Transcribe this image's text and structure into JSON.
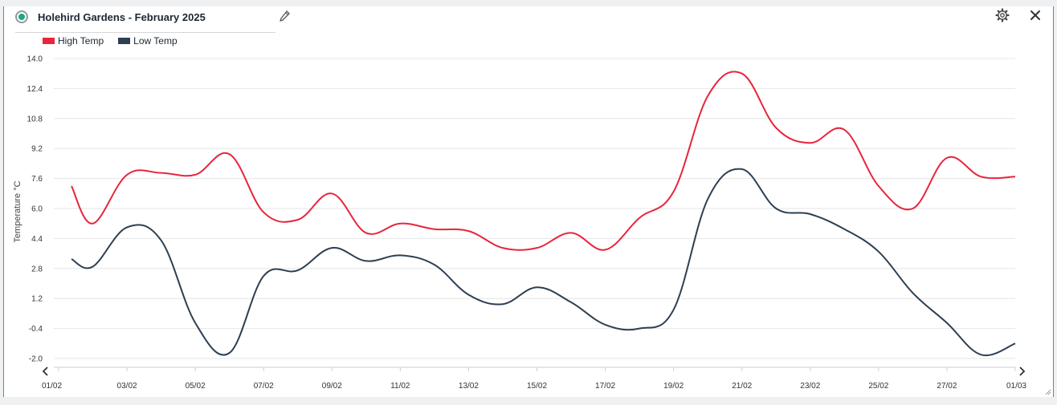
{
  "header": {
    "title": "Holehird Gardens - February 2025"
  },
  "icons": {
    "status": "status-indicator-icon",
    "edit": "pencil-icon",
    "settings": "gear-icon",
    "close": "close-icon",
    "prev": "chevron-left-icon",
    "next": "chevron-right-icon"
  },
  "colors": {
    "accent": "#2aa39a",
    "high": "#e8253c",
    "low": "#2e3f52",
    "status_on": "#1aa886"
  },
  "chart_data": {
    "type": "line",
    "title": "",
    "ylabel": "Temperature °C",
    "xlabel": "",
    "ylim": [
      -2.0,
      14.0
    ],
    "yticks": [
      "14.0",
      "12.4",
      "10.8",
      "9.2",
      "7.6",
      "6.0",
      "4.4",
      "2.8",
      "1.2",
      "-0.4",
      "-2.0"
    ],
    "xticks": [
      "01/02",
      "03/02",
      "05/02",
      "07/02",
      "09/02",
      "11/02",
      "13/02",
      "15/02",
      "17/02",
      "19/02",
      "21/02",
      "23/02",
      "25/02",
      "27/02",
      "01/03"
    ],
    "x": [
      "01/02",
      "02/02",
      "03/02",
      "04/02",
      "05/02",
      "06/02",
      "07/02",
      "08/02",
      "09/02",
      "10/02",
      "11/02",
      "12/02",
      "13/02",
      "14/02",
      "15/02",
      "16/02",
      "17/02",
      "18/02",
      "19/02",
      "20/02",
      "21/02",
      "22/02",
      "23/02",
      "24/02",
      "25/02",
      "26/02",
      "27/02",
      "28/02",
      "01/03"
    ],
    "grid": true,
    "legend": "top-left",
    "series": [
      {
        "name": "High Temp",
        "values": [
          7.2,
          5.2,
          7.8,
          7.9,
          7.8,
          8.9,
          5.8,
          5.4,
          6.8,
          4.7,
          5.2,
          4.9,
          4.8,
          3.9,
          3.9,
          4.7,
          3.8,
          5.5,
          6.9,
          12.0,
          13.2,
          10.3,
          9.5,
          10.2,
          7.2,
          6.0,
          8.7,
          7.7,
          7.7
        ]
      },
      {
        "name": "Low Temp",
        "values": [
          3.3,
          2.9,
          5.0,
          4.3,
          -0.1,
          -1.7,
          2.4,
          2.7,
          3.9,
          3.2,
          3.5,
          3.0,
          1.4,
          0.9,
          1.8,
          1.0,
          -0.2,
          -0.4,
          0.6,
          6.5,
          8.1,
          6.0,
          5.7,
          4.9,
          3.7,
          1.5,
          -0.1,
          -1.8,
          -1.2
        ]
      }
    ]
  }
}
